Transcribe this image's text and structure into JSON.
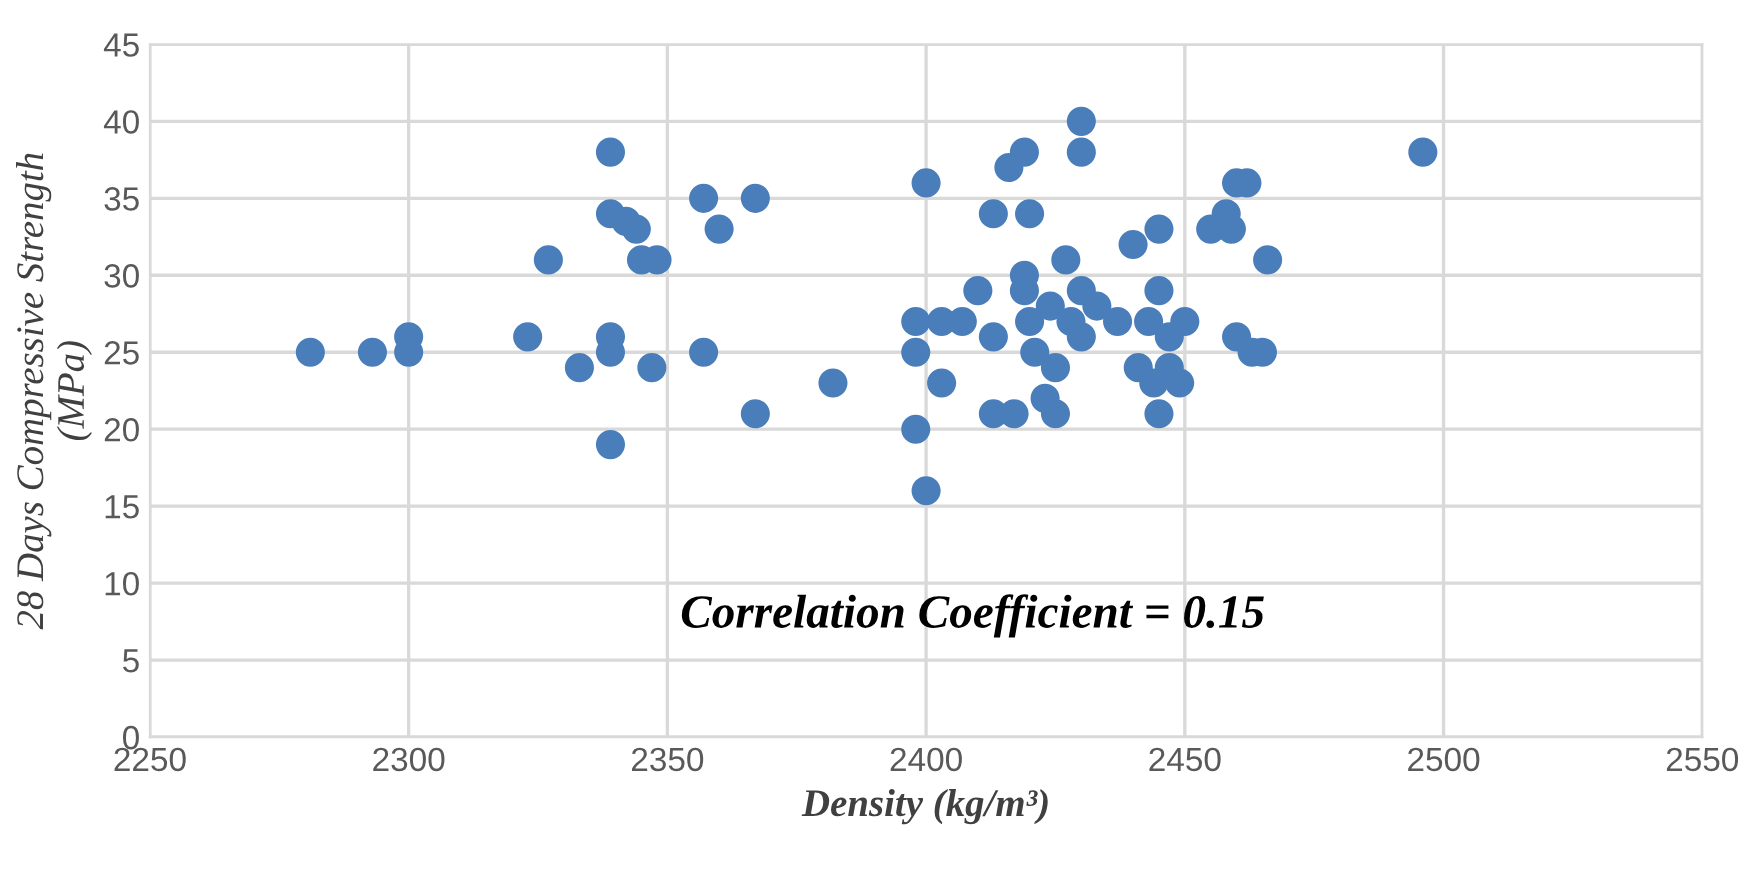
{
  "chart_data": {
    "type": "scatter",
    "xlabel": "Density (kg/m³)",
    "ylabel": "28 Days Compressive Strength\n(MPa)",
    "annotations": [
      "Correlation Coefficient = 0.15"
    ],
    "x": [
      2281,
      2293,
      2300,
      2300,
      2323,
      2327,
      2333,
      2339,
      2339,
      2339,
      2339,
      2339,
      2342,
      2344,
      2345,
      2348,
      2347,
      2357,
      2357,
      2360,
      2367,
      2367,
      2382,
      2398,
      2398,
      2398,
      2400,
      2400,
      2403,
      2403,
      2407,
      2410,
      2413,
      2413,
      2413,
      2417,
      2416,
      2419,
      2420,
      2419,
      2419,
      2420,
      2421,
      2423,
      2424,
      2425,
      2425,
      2427,
      2428,
      2430,
      2430,
      2430,
      2430,
      2433,
      2437,
      2440,
      2441,
      2443,
      2444,
      2445,
      2445,
      2445,
      2447,
      2447,
      2449,
      2450,
      2455,
      2458,
      2459,
      2460,
      2462,
      2460,
      2463,
      2465,
      2466,
      2496
    ],
    "series": [
      {
        "color": "#4a7ebb",
        "values": [
          25,
          25,
          26,
          25,
          26,
          31,
          24,
          38,
          34,
          26,
          25,
          19,
          33.5,
          33,
          31,
          31,
          24,
          35,
          25,
          33,
          35,
          21,
          23,
          27,
          25,
          20,
          36,
          16,
          23,
          27,
          27,
          29,
          34,
          26,
          21,
          21,
          37,
          38,
          34,
          30,
          29,
          27,
          25,
          22,
          28,
          24,
          21,
          31,
          27,
          40,
          38,
          29,
          26,
          28,
          27,
          32,
          24,
          27,
          23,
          29,
          33,
          21,
          26,
          24,
          23,
          27,
          33,
          34,
          33,
          36,
          36,
          26,
          25,
          25,
          31,
          38
        ]
      }
    ],
    "xlim": [
      2250,
      2550
    ],
    "xticks": [
      2250,
      2300,
      2350,
      2400,
      2450,
      2500,
      2550
    ],
    "ylim": [
      0,
      45
    ],
    "yticks": [
      0,
      5,
      10,
      15,
      20,
      25,
      30,
      35,
      40,
      45
    ],
    "grid": true,
    "marker": "circle",
    "legend": false
  }
}
